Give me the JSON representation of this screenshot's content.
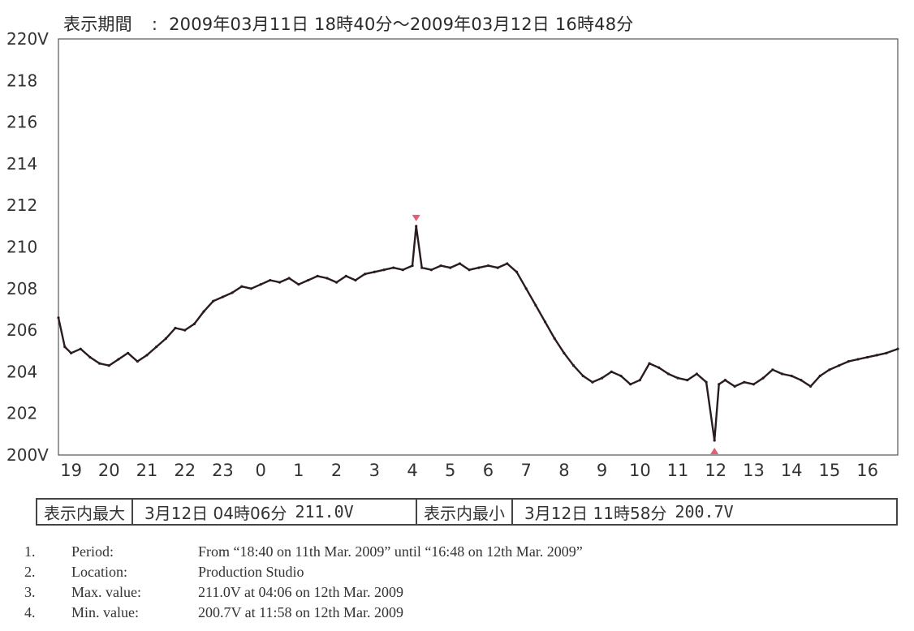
{
  "header": {
    "label": "表示期間",
    "separator": ":",
    "period": "2009年03月11日 18時40分～2009年03月12日 16時48分"
  },
  "chart_data": {
    "type": "line",
    "title": "",
    "xlabel": "",
    "ylabel": "",
    "y_unit": "V",
    "ylim": [
      200,
      220
    ],
    "y_ticks": [
      "220V",
      "218",
      "216",
      "214",
      "212",
      "210",
      "208",
      "206",
      "204",
      "202",
      "200V"
    ],
    "x_ticks": [
      "19",
      "20",
      "21",
      "22",
      "23",
      "0",
      "1",
      "2",
      "3",
      "4",
      "5",
      "6",
      "7",
      "8",
      "9",
      "10",
      "11",
      "12",
      "13",
      "14",
      "15",
      "16"
    ],
    "x_start": "18:40",
    "x_end": "16:48",
    "grid": false,
    "line_color": "#2a1a22",
    "marker_color": "#e0607a",
    "series": [
      {
        "points": [
          [
            "18:40",
            206.6
          ],
          [
            "18:50",
            205.2
          ],
          [
            "19:00",
            204.9
          ],
          [
            "19:15",
            205.1
          ],
          [
            "19:30",
            204.7
          ],
          [
            "19:45",
            204.4
          ],
          [
            "20:00",
            204.3
          ],
          [
            "20:15",
            204.6
          ],
          [
            "20:30",
            204.9
          ],
          [
            "20:45",
            204.5
          ],
          [
            "21:00",
            204.8
          ],
          [
            "21:15",
            205.2
          ],
          [
            "21:30",
            205.6
          ],
          [
            "21:45",
            206.1
          ],
          [
            "22:00",
            206.0
          ],
          [
            "22:15",
            206.3
          ],
          [
            "22:30",
            206.9
          ],
          [
            "22:45",
            207.4
          ],
          [
            "23:00",
            207.6
          ],
          [
            "23:15",
            207.8
          ],
          [
            "23:30",
            208.1
          ],
          [
            "23:45",
            208.0
          ],
          [
            "0:00",
            208.2
          ],
          [
            "0:15",
            208.4
          ],
          [
            "0:30",
            208.3
          ],
          [
            "0:45",
            208.5
          ],
          [
            "1:00",
            208.2
          ],
          [
            "1:15",
            208.4
          ],
          [
            "1:30",
            208.6
          ],
          [
            "1:45",
            208.5
          ],
          [
            "2:00",
            208.3
          ],
          [
            "2:15",
            208.6
          ],
          [
            "2:30",
            208.4
          ],
          [
            "2:45",
            208.7
          ],
          [
            "3:00",
            208.8
          ],
          [
            "3:15",
            208.9
          ],
          [
            "3:30",
            209.0
          ],
          [
            "3:45",
            208.9
          ],
          [
            "4:00",
            209.1
          ],
          [
            "4:06",
            211.0
          ],
          [
            "4:15",
            209.0
          ],
          [
            "4:30",
            208.9
          ],
          [
            "4:45",
            209.1
          ],
          [
            "5:00",
            209.0
          ],
          [
            "5:15",
            209.2
          ],
          [
            "5:30",
            208.9
          ],
          [
            "5:45",
            209.0
          ],
          [
            "6:00",
            209.1
          ],
          [
            "6:15",
            209.0
          ],
          [
            "6:30",
            209.2
          ],
          [
            "6:45",
            208.8
          ],
          [
            "7:00",
            208.0
          ],
          [
            "7:15",
            207.2
          ],
          [
            "7:30",
            206.4
          ],
          [
            "7:45",
            205.6
          ],
          [
            "8:00",
            204.9
          ],
          [
            "8:15",
            204.3
          ],
          [
            "8:30",
            203.8
          ],
          [
            "8:45",
            203.5
          ],
          [
            "9:00",
            203.7
          ],
          [
            "9:15",
            204.0
          ],
          [
            "9:30",
            203.8
          ],
          [
            "9:45",
            203.4
          ],
          [
            "10:00",
            203.6
          ],
          [
            "10:15",
            204.4
          ],
          [
            "10:30",
            204.2
          ],
          [
            "10:45",
            203.9
          ],
          [
            "11:00",
            203.7
          ],
          [
            "11:15",
            203.6
          ],
          [
            "11:30",
            203.9
          ],
          [
            "11:45",
            203.5
          ],
          [
            "11:58",
            200.7
          ],
          [
            "12:05",
            203.4
          ],
          [
            "12:15",
            203.6
          ],
          [
            "12:30",
            203.3
          ],
          [
            "12:45",
            203.5
          ],
          [
            "13:00",
            203.4
          ],
          [
            "13:15",
            203.7
          ],
          [
            "13:30",
            204.1
          ],
          [
            "13:45",
            203.9
          ],
          [
            "14:00",
            203.8
          ],
          [
            "14:15",
            203.6
          ],
          [
            "14:30",
            203.3
          ],
          [
            "14:45",
            203.8
          ],
          [
            "15:00",
            204.1
          ],
          [
            "15:15",
            204.3
          ],
          [
            "15:30",
            204.5
          ],
          [
            "15:45",
            204.6
          ],
          [
            "16:00",
            204.7
          ],
          [
            "16:15",
            204.8
          ],
          [
            "16:30",
            204.9
          ],
          [
            "16:48",
            205.1
          ]
        ]
      }
    ],
    "markers": [
      {
        "kind": "max",
        "time": "4:06",
        "value": 211.0
      },
      {
        "kind": "min",
        "time": "11:58",
        "value": 200.7
      }
    ]
  },
  "summary": {
    "max_label": "表示内最大",
    "max_value": "3月12日 04時06分",
    "max_reading": "211.0V",
    "min_label": "表示内最小",
    "min_value": "3月12日 11時58分",
    "min_reading": "200.7V"
  },
  "notes": [
    {
      "num": "1.",
      "key": "Period:",
      "value": "From “18:40 on 11th Mar. 2009” until “16:48 on 12th Mar. 2009”"
    },
    {
      "num": "2.",
      "key": "Location:",
      "value": "Production Studio"
    },
    {
      "num": "3.",
      "key": "Max. value:",
      "value": "211.0V at 04:06 on 12th Mar. 2009"
    },
    {
      "num": "4.",
      "key": "Min. value:",
      "value": "200.7V at 11:58 on 12th Mar. 2009"
    }
  ]
}
